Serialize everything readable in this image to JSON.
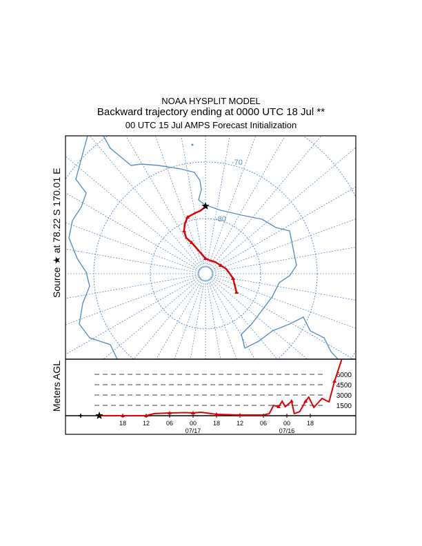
{
  "header": {
    "model": "NOAA HYSPLIT MODEL",
    "title": "Backward trajectory ending at 0000 UTC 18 Jul **",
    "subtitle": "00 UTC 15 Jul    AMPS  Forecast Initialization"
  },
  "source_label": "Source ★ at   78.22 S  170.01 E",
  "colors": {
    "map": "#5b8fc4",
    "trajectory": "#e00000",
    "frame": "#000000"
  },
  "chart_data": [
    {
      "type": "map",
      "title": "Backward trajectory",
      "projection": "south-polar stereographic",
      "latitude_labels": [
        "-70",
        "-80"
      ],
      "source": {
        "lat": -78.22,
        "lon": 170.01
      }
    },
    {
      "type": "line",
      "ylabel": "Meters AGL",
      "y_ticks": [
        1500,
        3000,
        4500,
        6000
      ],
      "y_tick_labels": [
        "1500",
        "3000",
        "4500",
        "6000"
      ],
      "x_tick_labels": [
        "18",
        "12",
        "06",
        "00",
        "18",
        "12",
        "06",
        "00",
        "18"
      ],
      "x_date_labels": [
        {
          "after_tick": 3,
          "label": "07/17"
        },
        {
          "after_tick": 7,
          "label": "07/16"
        }
      ],
      "x_hours_back": [
        0,
        6,
        12,
        14,
        18,
        22,
        24,
        26,
        30,
        36,
        42,
        43.5,
        44.6,
        45.9,
        46.8,
        47.6,
        49.2,
        49.9,
        51.3,
        52.8,
        53.6,
        54.9,
        57,
        58.8,
        60.2,
        62
      ],
      "heights_m": [
        0,
        0,
        0,
        300,
        400,
        450,
        400,
        500,
        200,
        100,
        100,
        300,
        1500,
        1300,
        2100,
        1300,
        2100,
        300,
        600,
        2100,
        2700,
        1200,
        2500,
        2000,
        5000,
        8100
      ]
    }
  ]
}
